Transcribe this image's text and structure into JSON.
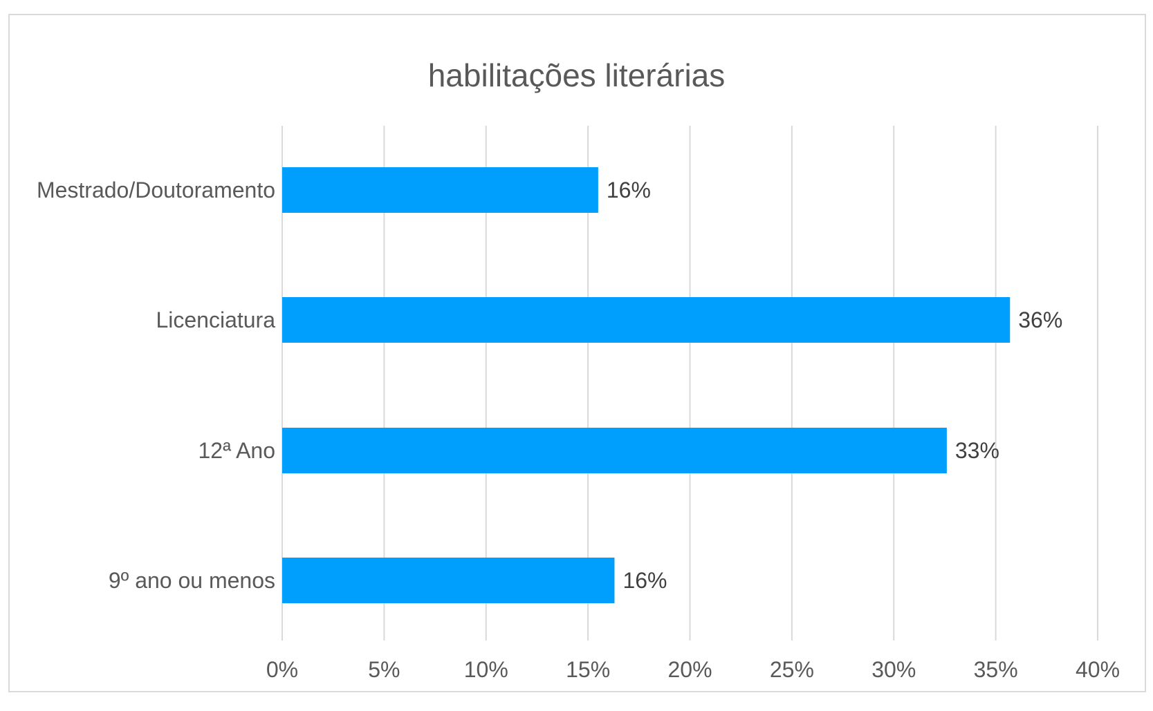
{
  "chart_data": {
    "type": "bar",
    "orientation": "horizontal",
    "title": "habilitações literárias",
    "categories": [
      "Mestrado/Doutoramento",
      "Licenciatura",
      "12ª Ano",
      "9º ano ou menos"
    ],
    "values": [
      0.155,
      0.357,
      0.326,
      0.163
    ],
    "data_labels": [
      "16%",
      "36%",
      "33%",
      "16%"
    ],
    "xlim": [
      0,
      0.4
    ],
    "x_ticks": [
      0,
      0.05,
      0.1,
      0.15,
      0.2,
      0.25,
      0.3,
      0.35,
      0.4
    ],
    "x_tick_labels": [
      "0%",
      "5%",
      "10%",
      "15%",
      "20%",
      "25%",
      "30%",
      "35%",
      "40%"
    ],
    "grid": "vertical",
    "legend": "none",
    "bar_color": "#009FFD",
    "grid_color": "#D9D9D9"
  }
}
